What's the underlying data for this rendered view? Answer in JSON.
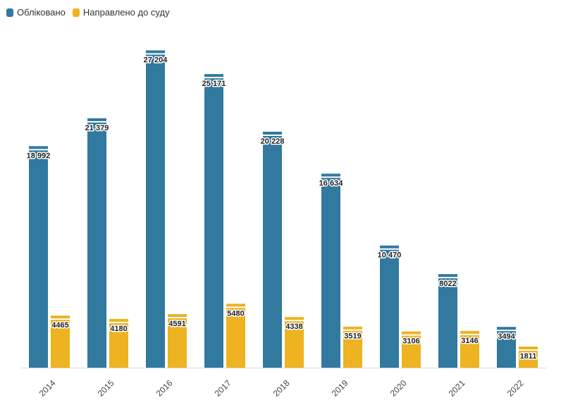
{
  "chart_data": {
    "type": "bar",
    "title": "",
    "xlabel": "",
    "ylabel": "",
    "categories": [
      "2014",
      "2015",
      "2016",
      "2017",
      "2018",
      "2019",
      "2020",
      "2021",
      "2022"
    ],
    "series": [
      {
        "name": "Обліковано",
        "color": "#31799f",
        "values": [
          18992,
          21379,
          27204,
          25171,
          20228,
          16634,
          10470,
          8022,
          3494
        ],
        "labels": [
          "18 992",
          "21 379",
          "27 204",
          "25 171",
          "20 228",
          "16 634",
          "10 470",
          "8022",
          "3494"
        ]
      },
      {
        "name": "Направлено до суду",
        "color": "#edb320",
        "values": [
          4465,
          4180,
          4591,
          5480,
          4338,
          3519,
          3106,
          3146,
          1811
        ],
        "labels": [
          "4465",
          "4180",
          "4591",
          "5480",
          "4338",
          "3519",
          "3106",
          "3146",
          "1811"
        ]
      }
    ],
    "ylim": [
      0,
      28000
    ],
    "grid": false,
    "legend_position": "top-left"
  }
}
